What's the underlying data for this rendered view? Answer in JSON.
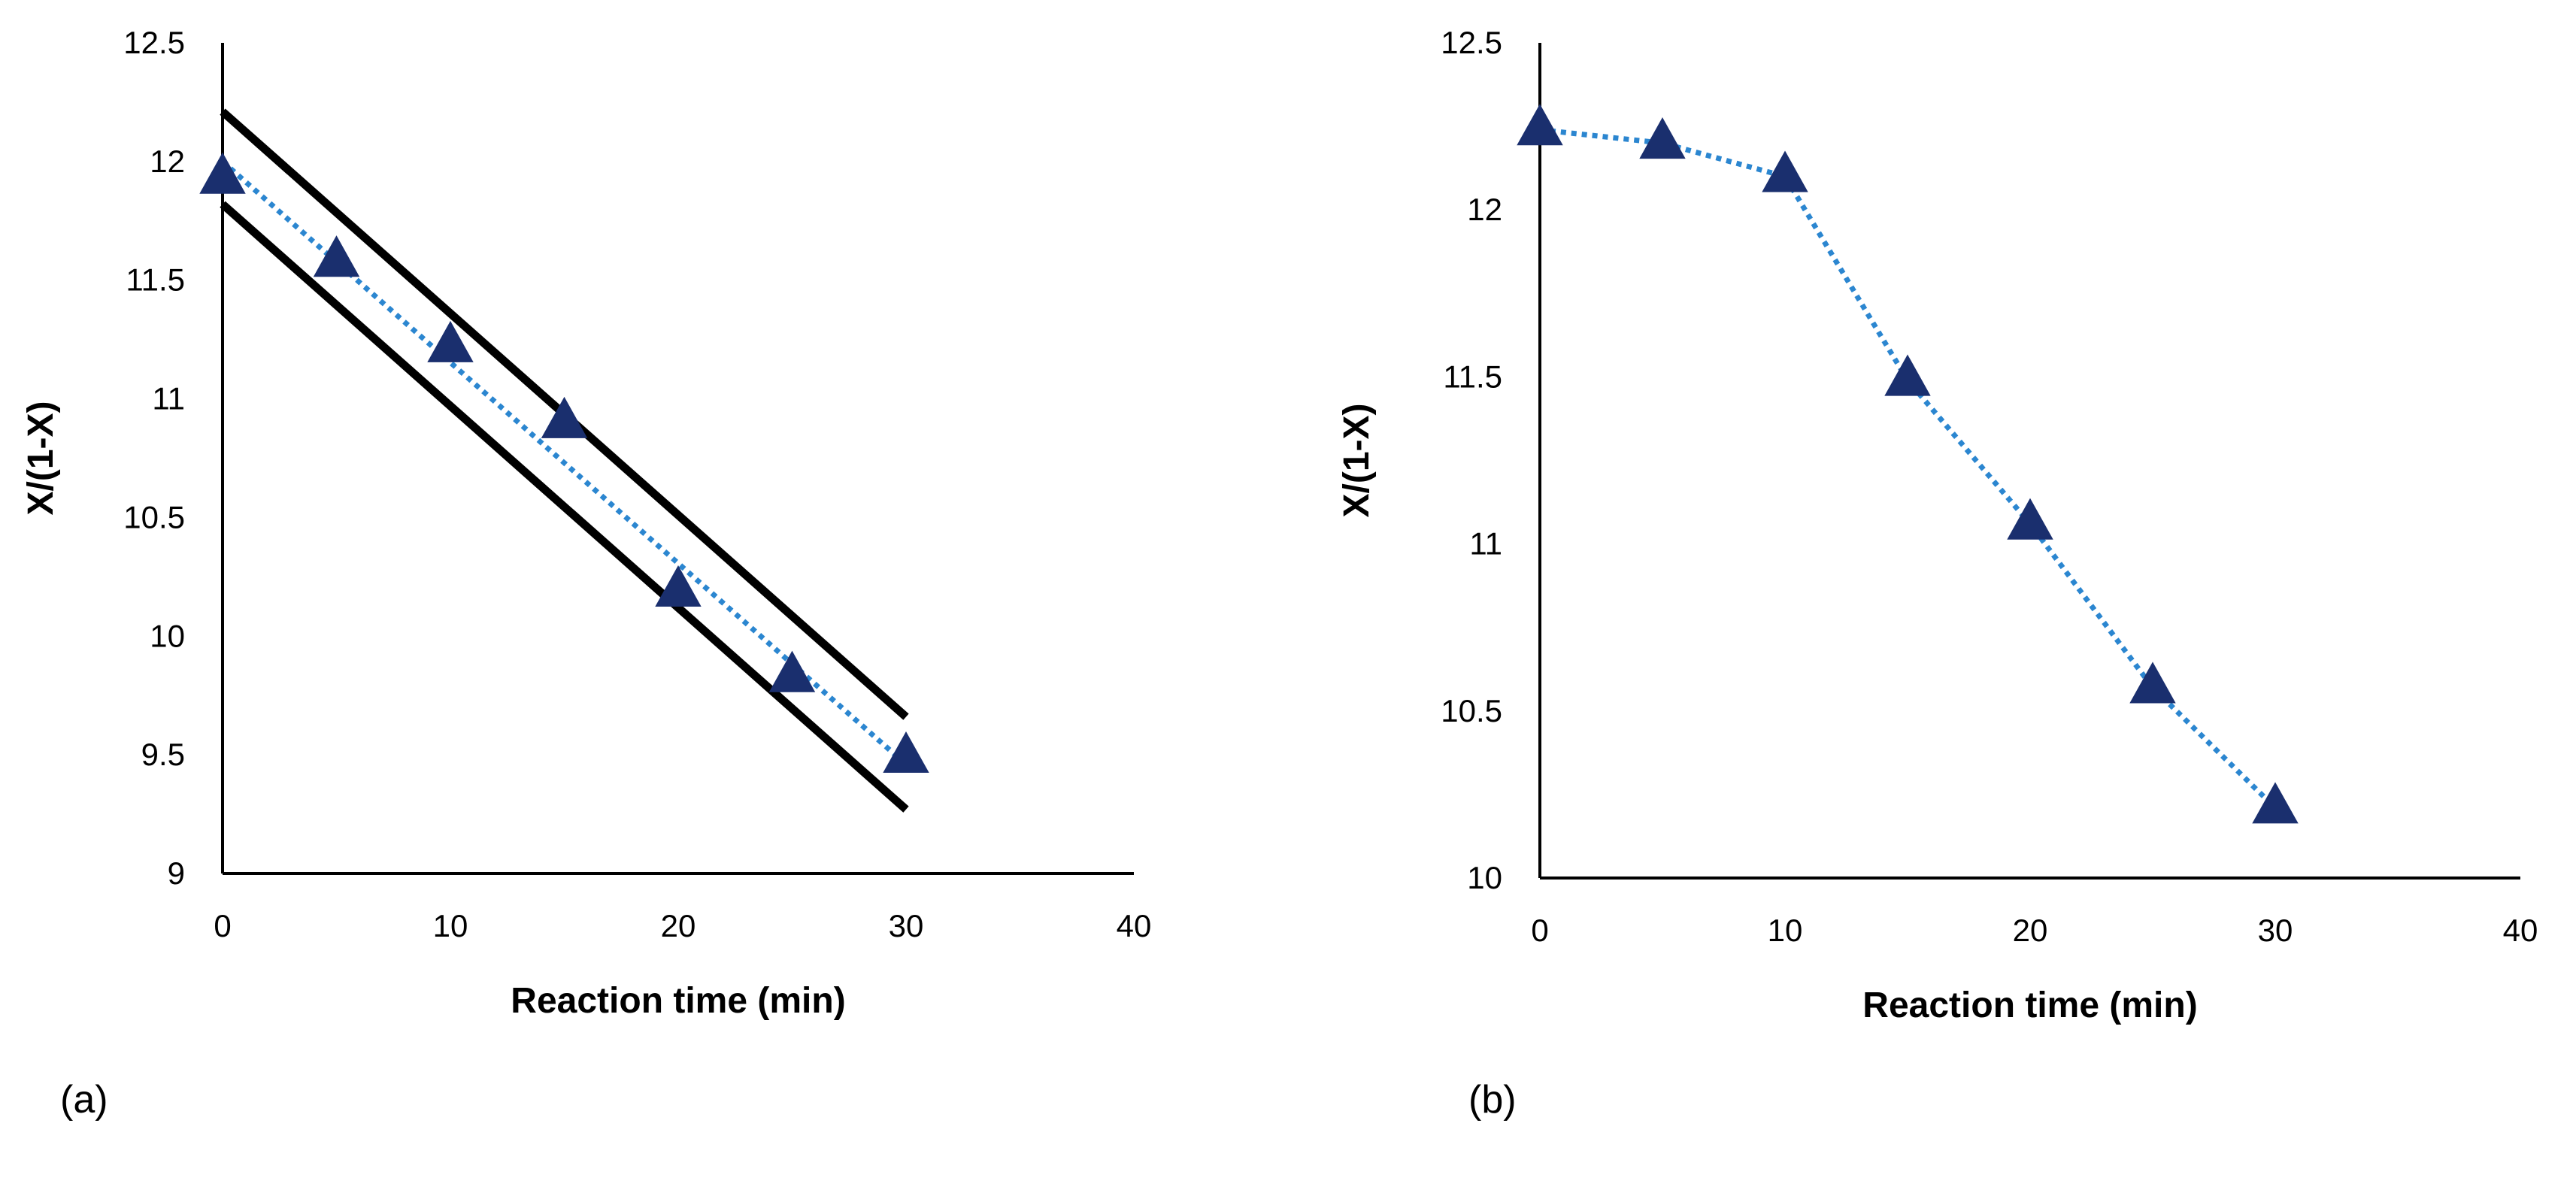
{
  "chart_data": [
    {
      "type": "scatter",
      "panel_label": "(a)",
      "xlabel": "Reaction time (min)",
      "ylabel": "X/(1-X)",
      "xlim": [
        0,
        40
      ],
      "ylim": [
        9,
        12.5
      ],
      "x_ticks": [
        0,
        10,
        20,
        30,
        40
      ],
      "x_tick_labels": [
        "0",
        "10",
        "20",
        "30",
        "40"
      ],
      "y_ticks": [
        9,
        9.5,
        10,
        10.5,
        11,
        11.5,
        12,
        12.5
      ],
      "y_tick_labels": [
        "9",
        "9.5",
        "10",
        "10.5",
        "11",
        "11.5",
        "12",
        "12.5"
      ],
      "grid": false,
      "series": [
        {
          "name": "data",
          "marker": "triangle",
          "color": "#1a2f6e",
          "x": [
            0,
            5,
            10,
            15,
            20,
            25,
            30
          ],
          "y": [
            11.93,
            11.58,
            11.22,
            10.9,
            10.19,
            9.83,
            9.49
          ]
        },
        {
          "name": "linear fit",
          "style": "dotted",
          "color": "#2b86d0",
          "x": [
            0,
            30
          ],
          "y": [
            12.0,
            9.46
          ]
        },
        {
          "name": "upper bound",
          "style": "solid",
          "color": "#000000",
          "x": [
            0,
            30
          ],
          "y": [
            12.21,
            9.66
          ]
        },
        {
          "name": "lower bound",
          "style": "solid",
          "color": "#000000",
          "x": [
            0,
            30
          ],
          "y": [
            11.82,
            9.27
          ]
        }
      ]
    },
    {
      "type": "line",
      "panel_label": "(b)",
      "xlabel": "Reaction time (min)",
      "ylabel": "X/(1-X)",
      "xlim": [
        0,
        40
      ],
      "ylim": [
        10,
        12.5
      ],
      "x_ticks": [
        0,
        10,
        20,
        30,
        40
      ],
      "x_tick_labels": [
        "0",
        "10",
        "20",
        "30",
        "40"
      ],
      "y_ticks": [
        10,
        10.5,
        11,
        11.5,
        12,
        12.5
      ],
      "y_tick_labels": [
        "10",
        "10.5",
        "11",
        "11.5",
        "12",
        "12.5"
      ],
      "grid": false,
      "series": [
        {
          "name": "data",
          "marker": "triangle",
          "line_style": "dotted",
          "color": "#1a2f6e",
          "line_color": "#2b86d0",
          "x": [
            0,
            5,
            10,
            15,
            20,
            25,
            30
          ],
          "y": [
            12.24,
            12.2,
            12.1,
            11.49,
            11.06,
            10.57,
            10.21
          ]
        }
      ]
    }
  ]
}
